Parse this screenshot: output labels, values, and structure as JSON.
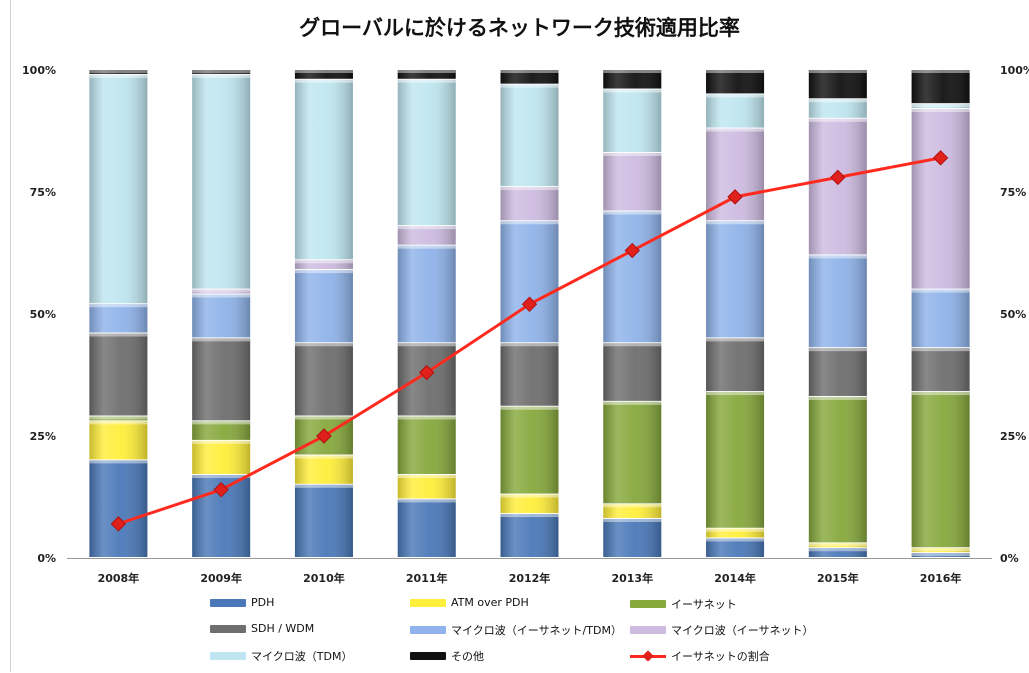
{
  "chart_data": {
    "type": "bar",
    "stacked": true,
    "title": "グローバルに於けるネットワーク技術適用比率",
    "categories": [
      "2008年",
      "2009年",
      "2010年",
      "2011年",
      "2012年",
      "2013年",
      "2014年",
      "2015年",
      "2016年"
    ],
    "y_ticks_left": [
      "0%",
      "25%",
      "50%",
      "75%",
      "100%"
    ],
    "y_ticks_right": [
      "0%",
      "25%",
      "50%",
      "75%",
      "100%"
    ],
    "ylim": [
      0,
      100
    ],
    "grid": false,
    "legend_position": "bottom",
    "series": [
      {
        "name": "PDH",
        "color": "#4a78b8",
        "values": [
          20,
          17,
          15,
          12,
          9,
          8,
          4,
          2,
          1
        ]
      },
      {
        "name": "ATM over PDH",
        "color": "#ffee3a",
        "values": [
          8,
          7,
          6,
          5,
          4,
          3,
          2,
          1,
          1
        ]
      },
      {
        "name": "イーサネット",
        "color": "#86a83c",
        "values": [
          1,
          4,
          8,
          12,
          18,
          21,
          28,
          30,
          32
        ]
      },
      {
        "name": "SDH / WDM",
        "color": "#6e6e6e",
        "values": [
          17,
          17,
          15,
          15,
          13,
          12,
          11,
          10,
          9
        ]
      },
      {
        "name": "マイクロ波（イーサネット/TDM）",
        "color": "#8fb3ea",
        "values": [
          6,
          9,
          15,
          20,
          25,
          27,
          24,
          19,
          12
        ]
      },
      {
        "name": "マイクロ波（イーサネット）",
        "color": "#cdbbe0",
        "values": [
          0,
          1,
          2,
          4,
          7,
          12,
          19,
          28,
          37
        ]
      },
      {
        "name": "マイクロ波（TDM）",
        "color": "#bfe6f0",
        "values": [
          47,
          44,
          37,
          30,
          21,
          13,
          7,
          4,
          1
        ]
      },
      {
        "name": "その他",
        "color": "#111111",
        "values": [
          1,
          1,
          2,
          2,
          3,
          4,
          5,
          6,
          7
        ]
      }
    ],
    "line_series": {
      "name": "イーサネットの割合",
      "color": "#ff2a1e",
      "values": [
        7,
        14,
        25,
        38,
        52,
        63,
        74,
        78,
        82
      ]
    },
    "legend_rows": [
      [
        "PDH",
        "ATM over PDH",
        "イーサネット"
      ],
      [
        "SDH / WDM",
        "マイクロ波（イーサネット/TDM）",
        "マイクロ波（イーサネット）"
      ],
      [
        "マイクロ波（TDM）",
        "その他",
        "イーサネットの割合"
      ]
    ]
  }
}
